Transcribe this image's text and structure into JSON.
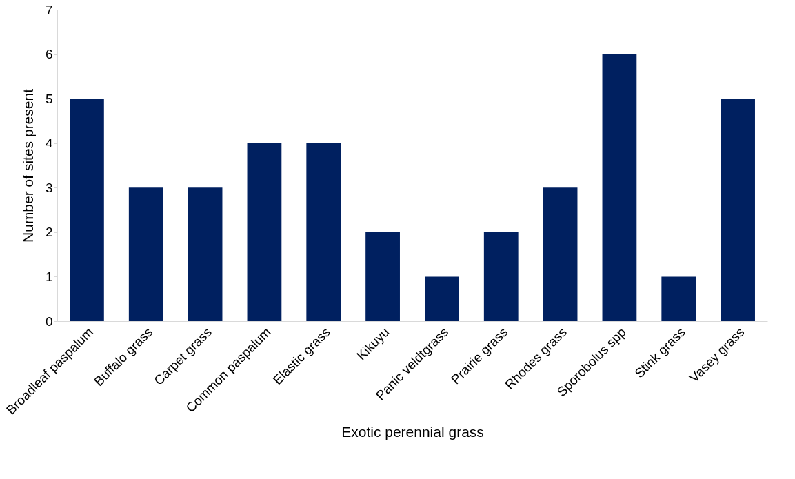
{
  "chart_data": {
    "type": "bar",
    "xlabel": "Exotic perennial grass",
    "ylabel": "Number of sites present",
    "categories": [
      "Broadleaf paspalum",
      "Buffalo grass",
      "Carpet grass",
      "Common paspalum",
      "Elastic grass",
      "Kikuyu",
      "Panic veldtgrass",
      "Prairie grass",
      "Rhodes grass",
      "Sporobolus spp",
      "Stink grass",
      "Vasey grass"
    ],
    "values": [
      5,
      3,
      3,
      4,
      4,
      2,
      1,
      2,
      3,
      6,
      1,
      5
    ],
    "color": "#002060",
    "ylim": [
      0,
      7
    ],
    "yticks": [
      0,
      1,
      2,
      3,
      4,
      5,
      6,
      7
    ],
    "grid": false
  }
}
